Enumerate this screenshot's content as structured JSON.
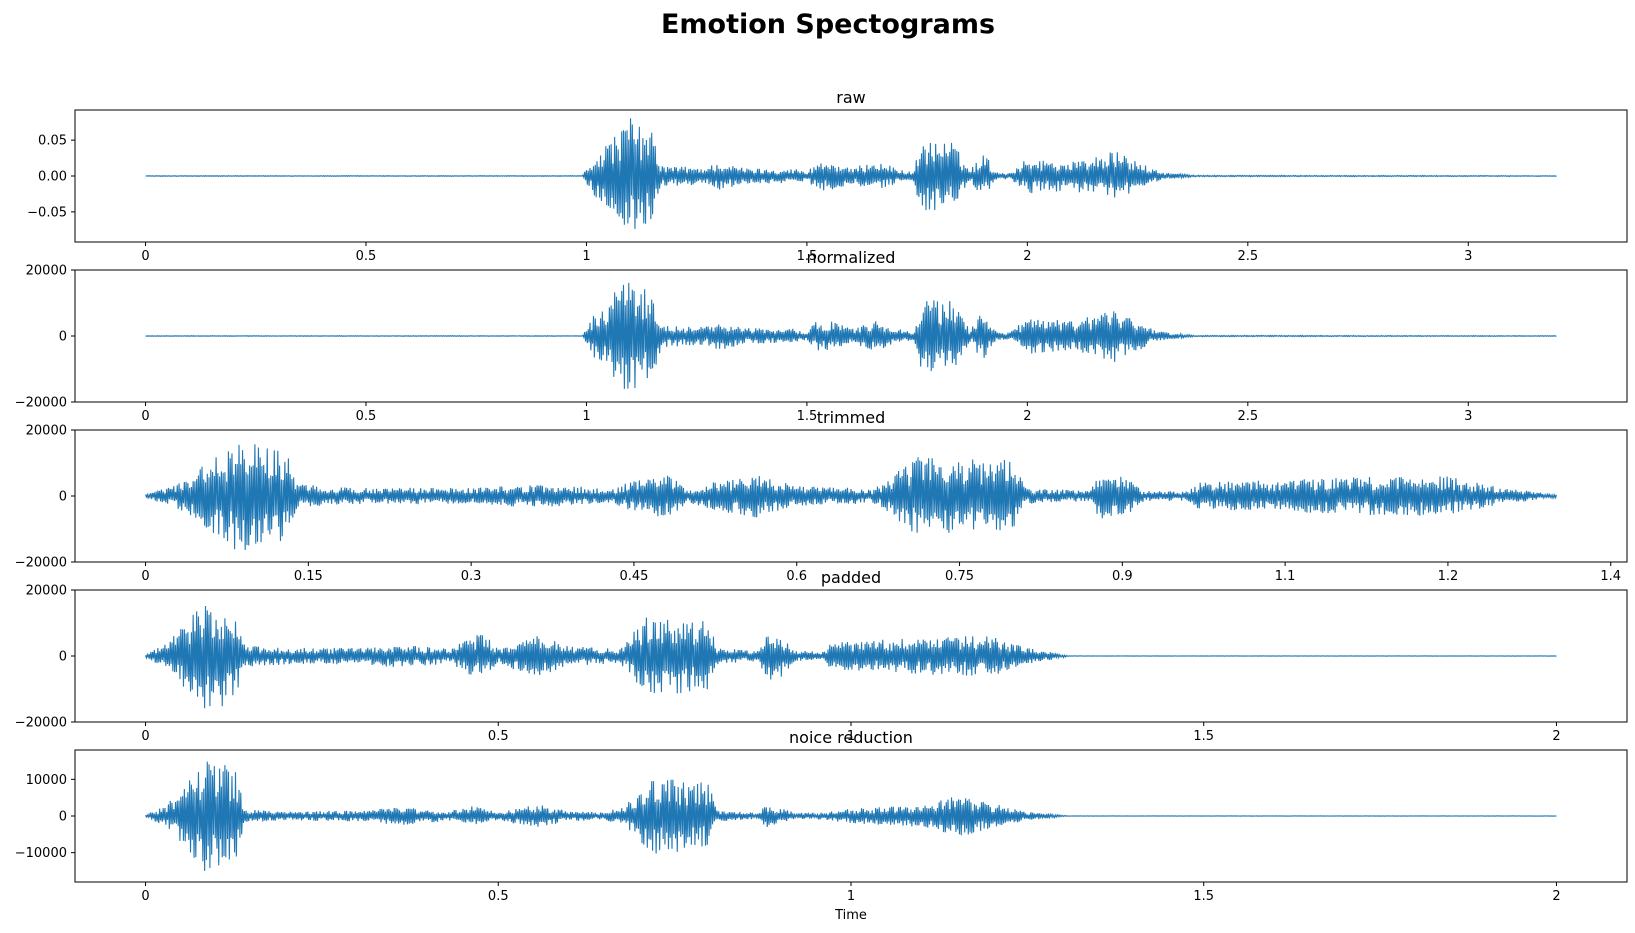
{
  "title": "Emotion Spectograms",
  "colors": {
    "wave": "#1f77b4",
    "axes": "#000000",
    "background": "#ffffff"
  },
  "chart_data": [
    {
      "type": "line",
      "title": "raw",
      "xlabel": "",
      "duration": 3.2,
      "xlim": [
        -0.16,
        3.36
      ],
      "ylim": [
        -0.092,
        0.092
      ],
      "xticks": [
        0,
        0.5,
        1,
        1.5,
        2,
        2.5,
        3
      ],
      "xtick_labels": [
        "0",
        "0.5",
        "1",
        "1.5",
        "2",
        "2.5",
        "3"
      ],
      "yticks": [
        0.05,
        0,
        -0.05
      ],
      "ytick_labels": [
        "0.05",
        "0.00",
        "−0.05"
      ],
      "envelope": [
        [
          0,
          0.0005
        ],
        [
          0.99,
          0.0005
        ],
        [
          1.02,
          0.03
        ],
        [
          1.1,
          0.082
        ],
        [
          1.15,
          0.06
        ],
        [
          1.17,
          0.015
        ],
        [
          1.27,
          0.012
        ],
        [
          1.3,
          0.02
        ],
        [
          1.35,
          0.012
        ],
        [
          1.42,
          0.01
        ],
        [
          1.48,
          0.01
        ],
        [
          1.5,
          0.005
        ],
        [
          1.52,
          0.02
        ],
        [
          1.56,
          0.02
        ],
        [
          1.6,
          0.01
        ],
        [
          1.65,
          0.022
        ],
        [
          1.7,
          0.012
        ],
        [
          1.74,
          0.005
        ],
        [
          1.76,
          0.05
        ],
        [
          1.83,
          0.048
        ],
        [
          1.87,
          0.008
        ],
        [
          1.9,
          0.035
        ],
        [
          1.93,
          0.005
        ],
        [
          1.96,
          0.005
        ],
        [
          2.0,
          0.025
        ],
        [
          2.1,
          0.02
        ],
        [
          2.2,
          0.035
        ],
        [
          2.25,
          0.02
        ],
        [
          2.3,
          0.006
        ],
        [
          2.38,
          0.001
        ],
        [
          3.2,
          0.0005
        ]
      ]
    },
    {
      "type": "line",
      "title": "normalized",
      "xlabel": "",
      "duration": 3.2,
      "xlim": [
        -0.16,
        3.36
      ],
      "ylim": [
        -20000,
        20000
      ],
      "xticks": [
        0,
        0.5,
        1,
        1.5,
        2,
        2.5,
        3
      ],
      "xtick_labels": [
        "0",
        "0.5",
        "1",
        "1.5",
        "2",
        "2.5",
        "3"
      ],
      "yticks": [
        20000,
        0,
        -20000
      ],
      "ytick_labels": [
        "20000",
        "0",
        "−20000"
      ],
      "envelope": [
        [
          0,
          100
        ],
        [
          0.99,
          100
        ],
        [
          1.02,
          7000
        ],
        [
          1.1,
          18500
        ],
        [
          1.15,
          13500
        ],
        [
          1.17,
          3500
        ],
        [
          1.27,
          2700
        ],
        [
          1.3,
          4500
        ],
        [
          1.35,
          2700
        ],
        [
          1.42,
          2200
        ],
        [
          1.48,
          2200
        ],
        [
          1.5,
          1100
        ],
        [
          1.52,
          4500
        ],
        [
          1.56,
          4500
        ],
        [
          1.6,
          2200
        ],
        [
          1.65,
          5000
        ],
        [
          1.7,
          2700
        ],
        [
          1.74,
          1100
        ],
        [
          1.76,
          11500
        ],
        [
          1.83,
          11000
        ],
        [
          1.87,
          1800
        ],
        [
          1.9,
          8000
        ],
        [
          1.93,
          1100
        ],
        [
          1.96,
          1100
        ],
        [
          2.0,
          5600
        ],
        [
          2.1,
          4500
        ],
        [
          2.2,
          8000
        ],
        [
          2.25,
          4500
        ],
        [
          2.3,
          1400
        ],
        [
          2.38,
          200
        ],
        [
          3.2,
          100
        ]
      ]
    },
    {
      "type": "line",
      "title": "trimmed",
      "xlabel": "",
      "duration": 1.3,
      "xlim": [
        -0.065,
        1.365
      ],
      "ylim": [
        -20000,
        20000
      ],
      "xticks": [
        0,
        0.15,
        0.3,
        0.45,
        0.6,
        0.75,
        0.9,
        1.1,
        1.2,
        1.4
      ],
      "xtick_pos": [
        0,
        0.15,
        0.3,
        0.45,
        0.6,
        0.75,
        0.9,
        1.05,
        1.2,
        1.35
      ],
      "xtick_labels": [
        "0",
        "0.15",
        "0.3",
        "0.45",
        "0.6",
        "0.75",
        "0.9",
        "1.1",
        "1.2",
        "1.4"
      ],
      "yticks": [
        20000,
        0,
        -20000
      ],
      "ytick_labels": [
        "20000",
        "0",
        "−20000"
      ],
      "envelope": [
        [
          0,
          500
        ],
        [
          0.03,
          4000
        ],
        [
          0.09,
          18000
        ],
        [
          0.13,
          13000
        ],
        [
          0.14,
          3500
        ],
        [
          0.2,
          2500
        ],
        [
          0.22,
          2500
        ],
        [
          0.3,
          2500
        ],
        [
          0.36,
          3500
        ],
        [
          0.42,
          2500
        ],
        [
          0.43,
          2000
        ],
        [
          0.45,
          5000
        ],
        [
          0.48,
          7000
        ],
        [
          0.5,
          2000
        ],
        [
          0.52,
          4000
        ],
        [
          0.56,
          7000
        ],
        [
          0.6,
          3000
        ],
        [
          0.65,
          2500
        ],
        [
          0.67,
          2000
        ],
        [
          0.68,
          4000
        ],
        [
          0.71,
          12000
        ],
        [
          0.8,
          11000
        ],
        [
          0.81,
          2500
        ],
        [
          0.87,
          1500
        ],
        [
          0.88,
          8000
        ],
        [
          0.9,
          7000
        ],
        [
          0.92,
          1500
        ],
        [
          0.96,
          1500
        ],
        [
          0.97,
          4000
        ],
        [
          1.05,
          5000
        ],
        [
          1.15,
          6000
        ],
        [
          1.2,
          6000
        ],
        [
          1.25,
          2500
        ],
        [
          1.3,
          500
        ]
      ]
    },
    {
      "type": "line",
      "title": "padded",
      "xlabel": "",
      "duration": 2.0,
      "xlim": [
        -0.1,
        2.1
      ],
      "ylim": [
        -20000,
        20000
      ],
      "xticks": [
        0,
        0.5,
        1,
        1.5,
        2
      ],
      "xtick_labels": [
        "0",
        "0.5",
        "1",
        "1.5",
        "2"
      ],
      "yticks": [
        20000,
        0,
        -20000
      ],
      "ytick_labels": [
        "20000",
        "0",
        "−20000"
      ],
      "envelope": [
        [
          0,
          500
        ],
        [
          0.03,
          4000
        ],
        [
          0.09,
          18000
        ],
        [
          0.13,
          13000
        ],
        [
          0.14,
          3500
        ],
        [
          0.2,
          2500
        ],
        [
          0.22,
          2500
        ],
        [
          0.3,
          2500
        ],
        [
          0.36,
          3500
        ],
        [
          0.42,
          2500
        ],
        [
          0.43,
          2000
        ],
        [
          0.45,
          5000
        ],
        [
          0.48,
          7000
        ],
        [
          0.5,
          2000
        ],
        [
          0.52,
          4000
        ],
        [
          0.56,
          7000
        ],
        [
          0.6,
          3000
        ],
        [
          0.65,
          2500
        ],
        [
          0.67,
          2000
        ],
        [
          0.68,
          4000
        ],
        [
          0.71,
          12000
        ],
        [
          0.8,
          11000
        ],
        [
          0.81,
          2500
        ],
        [
          0.87,
          1500
        ],
        [
          0.88,
          8000
        ],
        [
          0.9,
          7000
        ],
        [
          0.92,
          1500
        ],
        [
          0.96,
          1500
        ],
        [
          0.97,
          4000
        ],
        [
          1.05,
          5000
        ],
        [
          1.15,
          6000
        ],
        [
          1.2,
          6000
        ],
        [
          1.25,
          2500
        ],
        [
          1.3,
          500
        ],
        [
          1.31,
          60
        ],
        [
          2.0,
          60
        ]
      ]
    },
    {
      "type": "line",
      "title": "noice reduction",
      "xlabel": "Time",
      "duration": 2.0,
      "xlim": [
        -0.1,
        2.1
      ],
      "ylim": [
        -18000,
        18000
      ],
      "xticks": [
        0,
        0.5,
        1,
        1.5,
        2
      ],
      "xtick_labels": [
        "0",
        "0.5",
        "1",
        "1.5",
        "2"
      ],
      "yticks": [
        10000,
        0,
        -10000
      ],
      "ytick_labels": [
        "10000",
        "0",
        "−10000"
      ],
      "envelope": [
        [
          0,
          300
        ],
        [
          0.03,
          3000
        ],
        [
          0.09,
          16500
        ],
        [
          0.13,
          12000
        ],
        [
          0.14,
          2000
        ],
        [
          0.2,
          1200
        ],
        [
          0.3,
          1500
        ],
        [
          0.36,
          2500
        ],
        [
          0.42,
          1500
        ],
        [
          0.43,
          1200
        ],
        [
          0.46,
          3000
        ],
        [
          0.5,
          1000
        ],
        [
          0.53,
          2500
        ],
        [
          0.56,
          3000
        ],
        [
          0.6,
          1500
        ],
        [
          0.65,
          1000
        ],
        [
          0.68,
          3000
        ],
        [
          0.72,
          10500
        ],
        [
          0.8,
          9000
        ],
        [
          0.81,
          1500
        ],
        [
          0.87,
          800
        ],
        [
          0.88,
          3500
        ],
        [
          0.9,
          2500
        ],
        [
          0.92,
          800
        ],
        [
          0.96,
          1000
        ],
        [
          1.0,
          2000
        ],
        [
          1.1,
          3000
        ],
        [
          1.15,
          6000
        ],
        [
          1.2,
          3500
        ],
        [
          1.25,
          1200
        ],
        [
          1.3,
          200
        ],
        [
          1.31,
          50
        ],
        [
          2.0,
          50
        ]
      ]
    }
  ]
}
